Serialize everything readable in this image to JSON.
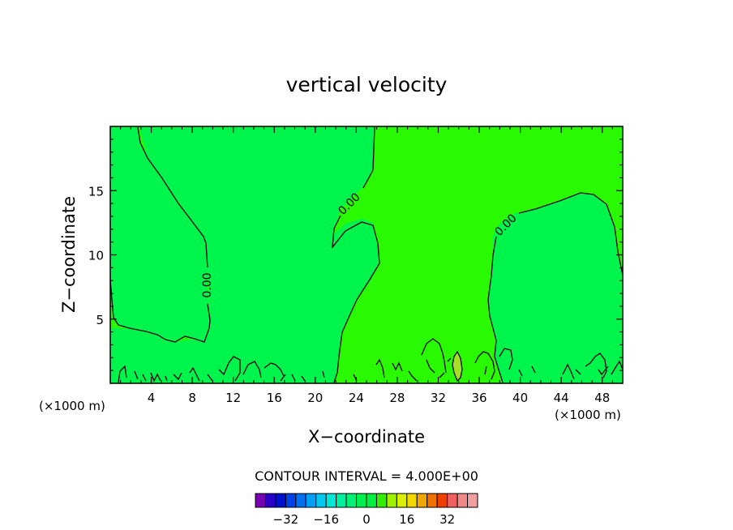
{
  "chart_data": {
    "type": "contour",
    "title": "vertical velocity",
    "xlabel": "X−coordinate",
    "ylabel": "Z−coordinate",
    "x_unit": "(×1000 m)",
    "y_unit": "(×1000 m)",
    "x_range": [
      0,
      50
    ],
    "y_range": [
      0,
      20
    ],
    "x_ticks": [
      4,
      8,
      12,
      16,
      20,
      24,
      28,
      32,
      36,
      40,
      44,
      48
    ],
    "x_tick_labels": [
      "4",
      "8",
      "12",
      "16",
      "20",
      "24",
      "28",
      "32",
      "36",
      "40",
      "44",
      "48"
    ],
    "y_ticks": [
      5,
      10,
      15
    ],
    "y_tick_labels": [
      "5",
      "10",
      "15"
    ],
    "contour_labels": [
      "0.00",
      "0.00",
      "0.00"
    ],
    "contour_interval_text": "CONTOUR INTERVAL = 4.000E+00",
    "colorbar": {
      "ticks": [
        -32,
        -16,
        0,
        16,
        32
      ],
      "tick_labels": [
        "−32",
        "−16",
        "0",
        "16",
        "32"
      ],
      "colors": [
        "#7a00b4",
        "#2a00c8",
        "#0010d0",
        "#0040e8",
        "#0070f0",
        "#00a0f4",
        "#00c8f0",
        "#00e8d8",
        "#00f0a0",
        "#00f078",
        "#00f050",
        "#00f040",
        "#30f000",
        "#a0f000",
        "#d8f000",
        "#f0d800",
        "#f0a800",
        "#f07000",
        "#f04000",
        "#f06060",
        "#f08888",
        "#f0a0a0"
      ]
    },
    "field_colors": {
      "positive": "#29fa02",
      "negative": "#00f54c",
      "strong": "#a6e026"
    }
  }
}
